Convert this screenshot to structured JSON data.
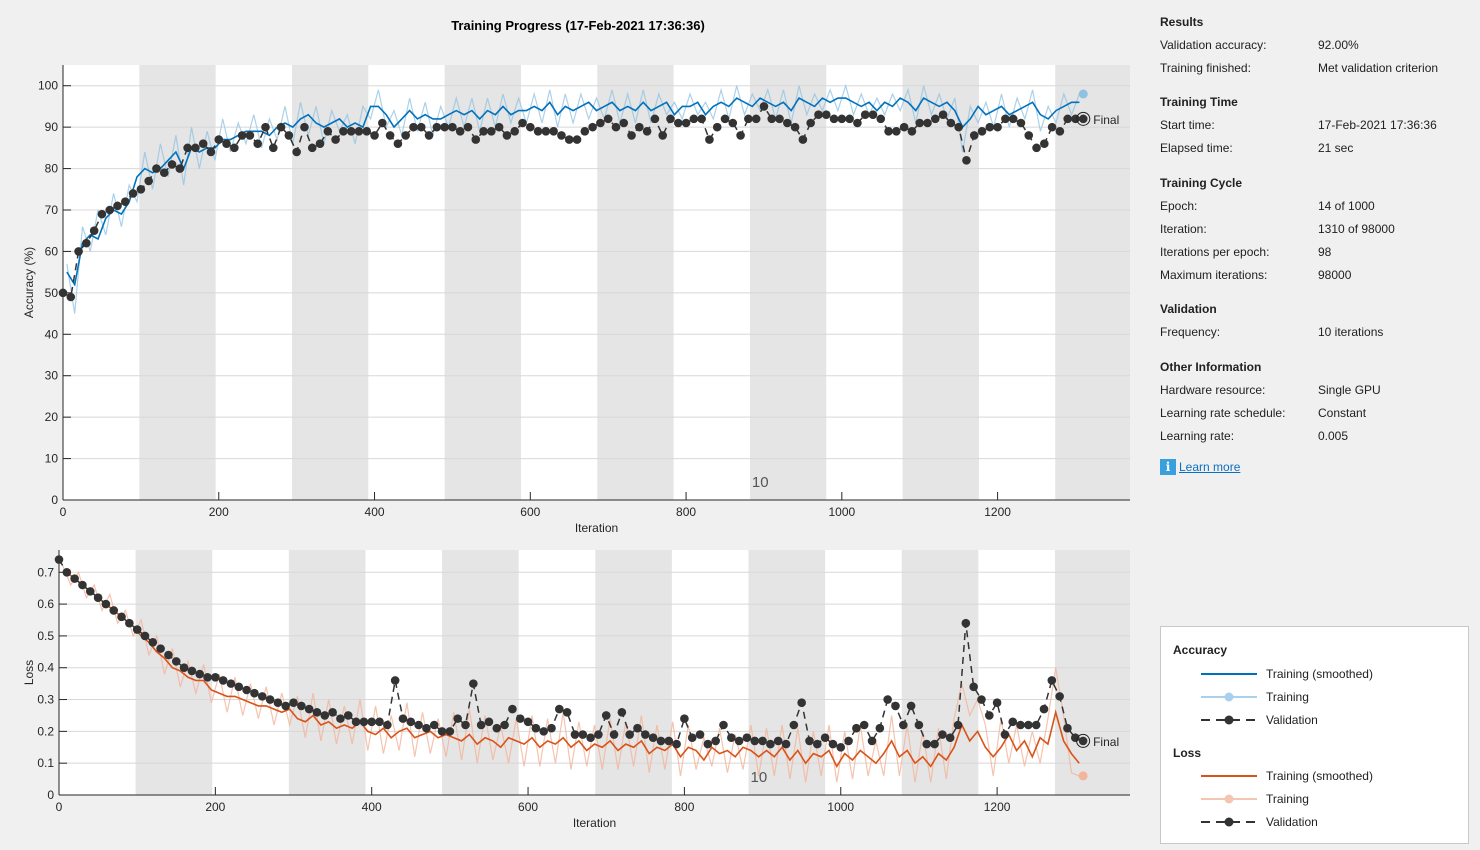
{
  "title": "Training Progress (17-Feb-2021 17:36:36)",
  "colors": {
    "acc_smoothed": "#0072bd",
    "acc_training": "#8fc1e3",
    "loss_smoothed": "#d95319",
    "loss_training": "#f2b49a",
    "validation": "#333333",
    "shade": "#e5e5e5"
  },
  "chart_data": [
    {
      "type": "line",
      "title": "Accuracy",
      "xlabel": "Iteration",
      "ylabel": "Accuracy (%)",
      "xlim": [
        0,
        1370
      ],
      "ylim": [
        0,
        105
      ],
      "xticks": [
        0,
        200,
        400,
        600,
        800,
        1000,
        1200
      ],
      "yticks": [
        0,
        10,
        20,
        30,
        40,
        50,
        60,
        70,
        80,
        90,
        100
      ],
      "grid": true,
      "iterations_per_epoch": 98,
      "epoch_label": {
        "text": "10",
        "epoch": 10
      },
      "final_label": "Final",
      "training_x_start": 5,
      "training_x_step": 10,
      "validation_x_start": 0,
      "validation_x_step": 10,
      "series": [
        {
          "name": "Training",
          "key": "raw",
          "values": [
            57,
            45,
            66,
            60,
            70,
            64,
            74,
            66,
            76,
            72,
            84,
            75,
            86,
            78,
            88,
            76,
            90,
            80,
            89,
            82,
            92,
            84,
            91,
            86,
            93,
            85,
            92,
            87,
            95,
            86,
            96,
            88,
            95,
            86,
            94,
            89,
            93,
            86,
            95,
            92,
            99,
            90,
            94,
            88,
            97,
            89,
            96,
            88,
            95,
            90,
            97,
            90,
            97,
            89,
            97,
            90,
            98,
            91,
            97,
            91,
            98,
            91,
            99,
            90,
            98,
            91,
            98,
            92,
            97,
            92,
            99,
            91,
            98,
            91,
            99,
            91,
            98,
            93,
            96,
            92,
            98,
            93,
            96,
            92,
            99,
            92,
            100,
            93,
            98,
            94,
            99,
            92,
            99,
            91,
            100,
            93,
            98,
            94,
            99,
            94,
            100,
            93,
            98,
            93,
            97,
            93,
            98,
            94,
            99,
            91,
            100,
            93,
            98,
            92,
            97,
            84,
            95,
            91,
            96,
            90,
            98,
            90,
            97,
            92,
            99,
            89,
            95,
            91,
            98,
            93,
            98
          ],
          "final": 98
        },
        {
          "name": "Training (smoothed)",
          "key": "smoothed",
          "values": [
            55,
            52,
            62,
            64,
            63,
            68,
            70,
            69,
            72,
            78,
            80,
            79,
            80,
            82,
            84,
            80,
            85,
            84,
            85,
            85,
            87,
            87,
            88,
            89,
            89,
            89,
            88,
            90,
            91,
            90,
            92,
            93,
            91,
            90,
            91,
            92,
            90,
            91,
            90,
            95,
            95,
            93,
            90,
            92,
            94,
            92,
            93,
            92,
            92,
            93,
            94,
            93,
            94,
            92,
            94,
            93,
            95,
            93,
            94,
            94,
            95,
            94,
            96,
            93,
            95,
            94,
            95,
            96,
            94,
            95,
            96,
            94,
            95,
            94,
            96,
            94,
            95,
            96,
            93,
            95,
            95,
            96,
            93,
            95,
            96,
            95,
            97,
            96,
            95,
            97,
            96,
            95,
            96,
            94,
            97,
            96,
            95,
            97,
            96,
            97,
            97,
            96,
            95,
            96,
            94,
            96,
            95,
            97,
            96,
            94,
            97,
            96,
            95,
            96,
            94,
            90,
            92,
            95,
            93,
            94,
            95,
            93,
            94,
            95,
            96,
            93,
            92,
            94,
            95,
            96,
            96
          ]
        },
        {
          "name": "Validation",
          "key": "validation",
          "values": [
            50,
            49,
            60,
            62,
            65,
            69,
            70,
            71,
            72,
            74,
            75,
            77,
            80,
            79,
            81,
            80,
            85,
            85,
            86,
            84,
            87,
            86,
            85,
            88,
            88,
            86,
            90,
            85,
            90,
            88,
            84,
            90,
            85,
            86,
            89,
            87,
            89,
            89,
            89,
            89,
            88,
            91,
            88,
            86,
            88,
            90,
            90,
            88,
            90,
            90,
            90,
            89,
            90,
            87,
            89,
            89,
            90,
            88,
            89,
            91,
            90,
            89,
            89,
            89,
            88,
            87,
            87,
            89,
            90,
            91,
            92,
            90,
            91,
            88,
            90,
            89,
            92,
            88,
            92,
            91,
            91,
            92,
            92,
            87,
            90,
            92,
            91,
            88,
            92,
            92,
            95,
            92,
            92,
            91,
            90,
            87,
            91,
            93,
            93,
            92,
            92,
            92,
            91,
            93,
            93,
            92,
            89,
            89,
            90,
            89,
            91,
            91,
            92,
            93,
            91,
            90,
            82,
            88,
            89,
            90,
            90,
            92,
            92,
            91,
            88,
            85,
            86,
            90,
            89,
            92,
            92,
            92
          ]
        }
      ]
    },
    {
      "type": "line",
      "title": "Loss",
      "xlabel": "Iteration",
      "ylabel": "Loss",
      "xlim": [
        0,
        1370
      ],
      "ylim": [
        0,
        0.77
      ],
      "xticks": [
        0,
        200,
        400,
        600,
        800,
        1000,
        1200
      ],
      "yticks": [
        0,
        0.1,
        0.2,
        0.3,
        0.4,
        0.5,
        0.6,
        0.7
      ],
      "grid": true,
      "iterations_per_epoch": 98,
      "epoch_label": {
        "text": "10",
        "epoch": 10
      },
      "final_label": "Final",
      "training_x_start": 5,
      "training_x_step": 10,
      "validation_x_start": 0,
      "validation_x_step": 10,
      "series": [
        {
          "name": "Training",
          "key": "raw",
          "values": [
            0.72,
            0.66,
            0.7,
            0.62,
            0.66,
            0.58,
            0.63,
            0.54,
            0.58,
            0.5,
            0.55,
            0.44,
            0.5,
            0.38,
            0.46,
            0.34,
            0.42,
            0.32,
            0.41,
            0.29,
            0.38,
            0.26,
            0.37,
            0.25,
            0.35,
            0.24,
            0.34,
            0.22,
            0.32,
            0.22,
            0.31,
            0.18,
            0.32,
            0.17,
            0.3,
            0.16,
            0.28,
            0.16,
            0.3,
            0.14,
            0.28,
            0.13,
            0.25,
            0.14,
            0.29,
            0.12,
            0.26,
            0.13,
            0.24,
            0.12,
            0.26,
            0.11,
            0.27,
            0.1,
            0.25,
            0.11,
            0.22,
            0.1,
            0.24,
            0.09,
            0.25,
            0.09,
            0.24,
            0.1,
            0.26,
            0.08,
            0.23,
            0.09,
            0.22,
            0.08,
            0.24,
            0.08,
            0.23,
            0.09,
            0.25,
            0.07,
            0.22,
            0.08,
            0.23,
            0.06,
            0.22,
            0.08,
            0.18,
            0.09,
            0.21,
            0.07,
            0.19,
            0.08,
            0.22,
            0.06,
            0.21,
            0.06,
            0.22,
            0.05,
            0.21,
            0.04,
            0.2,
            0.06,
            0.22,
            0.04,
            0.2,
            0.05,
            0.22,
            0.06,
            0.17,
            0.06,
            0.25,
            0.06,
            0.22,
            0.04,
            0.2,
            0.04,
            0.21,
            0.05,
            0.24,
            0.35,
            0.25,
            0.3,
            0.22,
            0.06,
            0.24,
            0.1,
            0.22,
            0.09,
            0.2,
            0.1,
            0.24,
            0.4,
            0.25,
            0.07,
            0.06
          ],
          "final": 0.06
        },
        {
          "name": "Training (smoothed)",
          "key": "smoothed",
          "values": [
            0.7,
            0.69,
            0.67,
            0.65,
            0.63,
            0.61,
            0.59,
            0.57,
            0.55,
            0.53,
            0.5,
            0.48,
            0.45,
            0.43,
            0.4,
            0.39,
            0.37,
            0.36,
            0.36,
            0.33,
            0.32,
            0.31,
            0.31,
            0.3,
            0.29,
            0.28,
            0.28,
            0.27,
            0.26,
            0.27,
            0.24,
            0.23,
            0.25,
            0.22,
            0.23,
            0.21,
            0.22,
            0.21,
            0.23,
            0.2,
            0.19,
            0.21,
            0.18,
            0.2,
            0.21,
            0.18,
            0.19,
            0.2,
            0.18,
            0.19,
            0.18,
            0.17,
            0.19,
            0.16,
            0.18,
            0.17,
            0.15,
            0.18,
            0.17,
            0.16,
            0.18,
            0.15,
            0.17,
            0.16,
            0.18,
            0.15,
            0.17,
            0.14,
            0.16,
            0.15,
            0.17,
            0.14,
            0.16,
            0.15,
            0.17,
            0.13,
            0.15,
            0.14,
            0.16,
            0.12,
            0.15,
            0.14,
            0.11,
            0.15,
            0.13,
            0.14,
            0.12,
            0.15,
            0.14,
            0.12,
            0.14,
            0.12,
            0.15,
            0.11,
            0.14,
            0.1,
            0.13,
            0.12,
            0.14,
            0.09,
            0.13,
            0.11,
            0.14,
            0.12,
            0.1,
            0.13,
            0.17,
            0.12,
            0.14,
            0.1,
            0.12,
            0.09,
            0.13,
            0.11,
            0.15,
            0.22,
            0.17,
            0.2,
            0.15,
            0.12,
            0.15,
            0.19,
            0.14,
            0.17,
            0.12,
            0.18,
            0.16,
            0.26,
            0.17,
            0.13,
            0.1
          ]
        },
        {
          "name": "Validation",
          "key": "validation",
          "values": [
            0.74,
            0.7,
            0.68,
            0.66,
            0.64,
            0.62,
            0.6,
            0.58,
            0.56,
            0.54,
            0.52,
            0.5,
            0.48,
            0.46,
            0.44,
            0.42,
            0.4,
            0.39,
            0.38,
            0.37,
            0.37,
            0.36,
            0.35,
            0.34,
            0.33,
            0.32,
            0.31,
            0.3,
            0.29,
            0.28,
            0.29,
            0.28,
            0.27,
            0.26,
            0.25,
            0.26,
            0.24,
            0.25,
            0.23,
            0.23,
            0.23,
            0.23,
            0.22,
            0.36,
            0.24,
            0.23,
            0.22,
            0.21,
            0.22,
            0.2,
            0.2,
            0.24,
            0.22,
            0.35,
            0.22,
            0.23,
            0.21,
            0.22,
            0.27,
            0.24,
            0.23,
            0.21,
            0.2,
            0.21,
            0.27,
            0.26,
            0.19,
            0.19,
            0.18,
            0.19,
            0.25,
            0.19,
            0.26,
            0.19,
            0.21,
            0.19,
            0.18,
            0.17,
            0.17,
            0.16,
            0.24,
            0.18,
            0.19,
            0.16,
            0.17,
            0.22,
            0.18,
            0.17,
            0.18,
            0.17,
            0.17,
            0.16,
            0.17,
            0.16,
            0.22,
            0.29,
            0.17,
            0.16,
            0.18,
            0.16,
            0.15,
            0.17,
            0.21,
            0.22,
            0.17,
            0.21,
            0.3,
            0.28,
            0.22,
            0.28,
            0.22,
            0.16,
            0.16,
            0.19,
            0.18,
            0.22,
            0.54,
            0.34,
            0.3,
            0.25,
            0.29,
            0.19,
            0.23,
            0.22,
            0.22,
            0.22,
            0.27,
            0.36,
            0.31,
            0.21,
            0.18,
            0.17
          ]
        }
      ]
    }
  ],
  "results": {
    "title": "Results",
    "rows": [
      {
        "label": "Validation accuracy:",
        "value": "92.00%"
      },
      {
        "label": "Training finished:",
        "value": "Met validation criterion"
      }
    ]
  },
  "training_time": {
    "title": "Training Time",
    "rows": [
      {
        "label": "Start time:",
        "value": "17-Feb-2021 17:36:36"
      },
      {
        "label": "Elapsed time:",
        "value": "21 sec"
      }
    ]
  },
  "training_cycle": {
    "title": "Training Cycle",
    "rows": [
      {
        "label": "Epoch:",
        "value": "14 of 1000"
      },
      {
        "label": "Iteration:",
        "value": "1310 of 98000"
      },
      {
        "label": "Iterations per epoch:",
        "value": "98"
      },
      {
        "label": "Maximum iterations:",
        "value": "98000"
      }
    ]
  },
  "validation": {
    "title": "Validation",
    "rows": [
      {
        "label": "Frequency:",
        "value": "10 iterations"
      }
    ]
  },
  "other_info": {
    "title": "Other Information",
    "rows": [
      {
        "label": "Hardware resource:",
        "value": "Single GPU"
      },
      {
        "label": "Learning rate schedule:",
        "value": "Constant"
      },
      {
        "label": "Learning rate:",
        "value": "0.005"
      }
    ]
  },
  "learn_more": {
    "icon": "info-icon",
    "label": "Learn more"
  },
  "legend": {
    "accuracy_title": "Accuracy",
    "loss_title": "Loss",
    "training_smoothed": "Training (smoothed)",
    "training": "Training",
    "validation": "Validation"
  }
}
